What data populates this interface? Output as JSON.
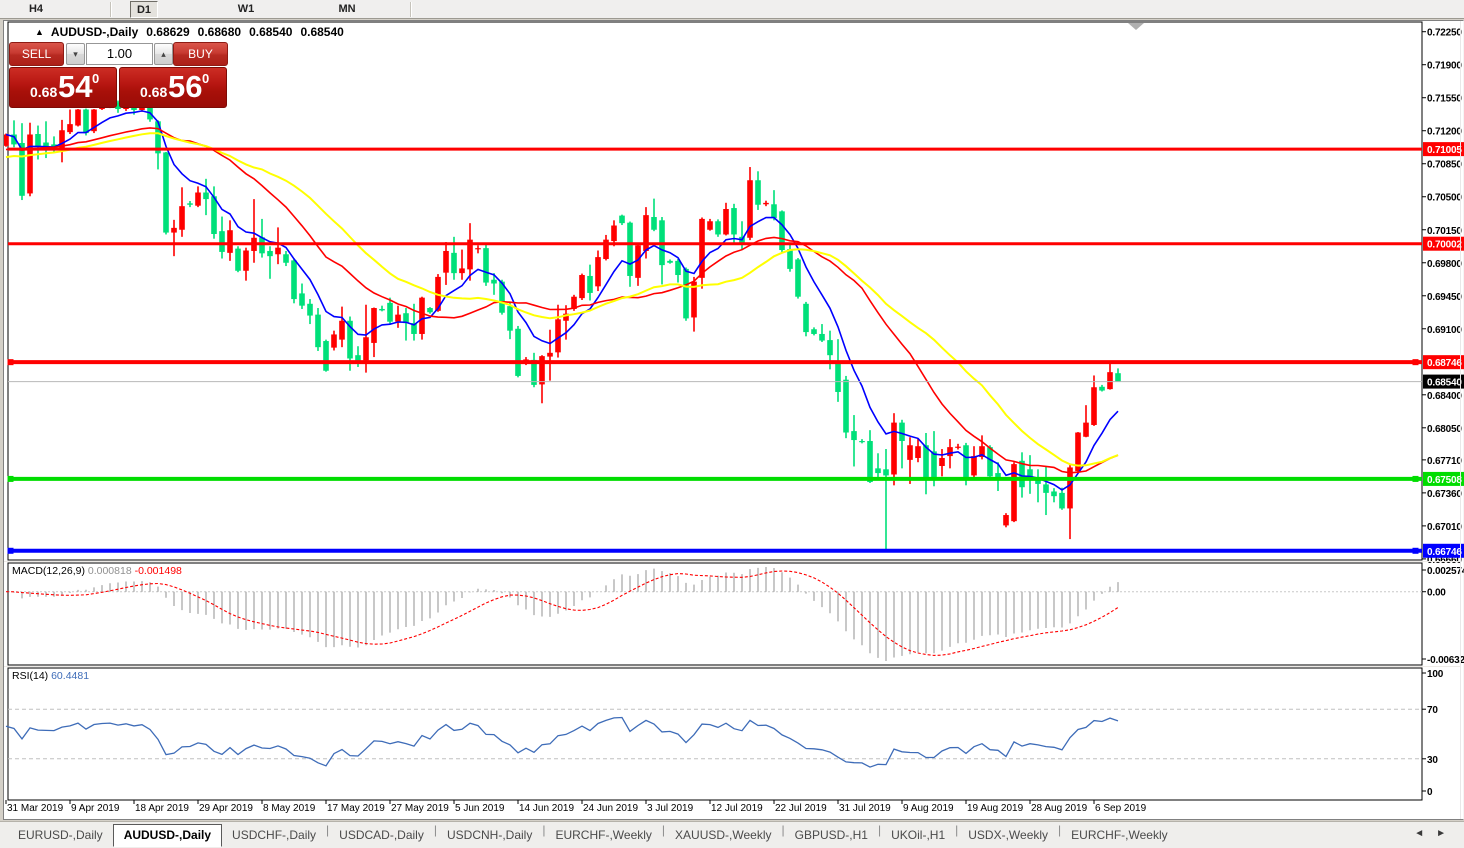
{
  "toolbar": {
    "buttons": [
      {
        "label": "H4",
        "active": false
      },
      {
        "label": "D1",
        "active": true
      },
      {
        "label": "W1",
        "active": false
      },
      {
        "label": "MN",
        "active": false
      }
    ]
  },
  "chart_window": {
    "collapse_marker": "▲",
    "title": "AUDUSD-,Daily",
    "quote_open": "0.68629",
    "quote_high": "0.68680",
    "quote_low": "0.68540",
    "quote_close": "0.68540"
  },
  "trade_panel": {
    "sell_label": "SELL",
    "buy_label": "BUY",
    "volume": "1.00",
    "spin_down_icon": "▾",
    "spin_up_icon": "▴",
    "sell_price": {
      "small": "0.68",
      "big": "54",
      "sup": "0"
    },
    "buy_price": {
      "small": "0.68",
      "big": "56",
      "sup": "0"
    }
  },
  "chart_data": {
    "type": "candlestick",
    "symbol": "AUDUSD-",
    "timeframe": "Daily",
    "bars": 140,
    "ohlc": [
      [
        0.7104,
        0.7117,
        0.7103,
        0.7116
      ],
      [
        0.7116,
        0.7131,
        0.71025,
        0.71055
      ],
      [
        0.7107,
        0.7128,
        0.70465,
        0.7051
      ],
      [
        0.70535,
        0.71285,
        0.70505,
        0.7116
      ],
      [
        0.71165,
        0.71255,
        0.70895,
        0.71035
      ],
      [
        0.71075,
        0.713,
        0.7091,
        0.7102
      ],
      [
        0.71055,
        0.7114,
        0.70975,
        0.7101
      ],
      [
        0.71,
        0.71315,
        0.70865,
        0.71205
      ],
      [
        0.71185,
        0.71425,
        0.71165,
        0.7127
      ],
      [
        0.71255,
        0.7143,
        0.71245,
        0.71425
      ],
      [
        0.71425,
        0.71435,
        0.7115,
        0.71175
      ],
      [
        0.71195,
        0.7143,
        0.71175,
        0.71425
      ],
      [
        0.7143,
        0.7152,
        0.7142,
        0.7148
      ],
      [
        0.7148,
        0.7155,
        0.7144,
        0.715
      ],
      [
        0.715,
        0.7152,
        0.7139,
        0.7143
      ],
      [
        0.7143,
        0.7153,
        0.7141,
        0.7149
      ],
      [
        0.7149,
        0.7152,
        0.7137,
        0.7142
      ],
      [
        0.7142,
        0.7154,
        0.714,
        0.7147
      ],
      [
        0.7146,
        0.7148,
        0.71295,
        0.7132
      ],
      [
        0.713,
        0.7131,
        0.7079,
        0.7096
      ],
      [
        0.7097,
        0.70975,
        0.701,
        0.7012
      ],
      [
        0.7012,
        0.70255,
        0.6987,
        0.7017
      ],
      [
        0.7015,
        0.706,
        0.70075,
        0.704
      ],
      [
        0.7043,
        0.70455,
        0.7039,
        0.70415
      ],
      [
        0.70405,
        0.7061,
        0.7039,
        0.70545
      ],
      [
        0.70545,
        0.7069,
        0.70305,
        0.70475
      ],
      [
        0.70505,
        0.7061,
        0.70055,
        0.70105
      ],
      [
        0.70135,
        0.7029,
        0.69845,
        0.69915
      ],
      [
        0.69905,
        0.7025,
        0.6982,
        0.70145
      ],
      [
        0.6995,
        0.69975,
        0.697,
        0.69715
      ],
      [
        0.69715,
        0.6996,
        0.6961,
        0.6993
      ],
      [
        0.69925,
        0.70475,
        0.698,
        0.70065
      ],
      [
        0.7007,
        0.70265,
        0.69855,
        0.699
      ],
      [
        0.69925,
        0.69975,
        0.6963,
        0.6987
      ],
      [
        0.6989,
        0.70175,
        0.69785,
        0.6996
      ],
      [
        0.6989,
        0.69925,
        0.69765,
        0.698
      ],
      [
        0.69825,
        0.69845,
        0.6937,
        0.69415
      ],
      [
        0.69475,
        0.6958,
        0.6931,
        0.69345
      ],
      [
        0.69365,
        0.69415,
        0.6915,
        0.6924
      ],
      [
        0.6925,
        0.6932,
        0.68865,
        0.68905
      ],
      [
        0.6897,
        0.68985,
        0.68645,
        0.68655
      ],
      [
        0.689,
        0.6908,
        0.6887,
        0.6904
      ],
      [
        0.68985,
        0.69335,
        0.68905,
        0.69185
      ],
      [
        0.69185,
        0.6923,
        0.68655,
        0.68785
      ],
      [
        0.6882,
        0.68915,
        0.68695,
        0.68755
      ],
      [
        0.68765,
        0.69355,
        0.68635,
        0.6901
      ],
      [
        0.6895,
        0.69325,
        0.688,
        0.6932
      ],
      [
        0.6931,
        0.69345,
        0.69285,
        0.69295
      ],
      [
        0.69375,
        0.6943,
        0.6915,
        0.69175
      ],
      [
        0.69175,
        0.69345,
        0.6911,
        0.6925
      ],
      [
        0.69265,
        0.6932,
        0.68975,
        0.6916
      ],
      [
        0.6916,
        0.69365,
        0.68975,
        0.69045
      ],
      [
        0.69045,
        0.6944,
        0.68985,
        0.6943
      ],
      [
        0.6932,
        0.6933,
        0.6926,
        0.69275
      ],
      [
        0.6929,
        0.6968,
        0.6928,
        0.6965
      ],
      [
        0.69695,
        0.7002,
        0.69565,
        0.69925
      ],
      [
        0.69905,
        0.70075,
        0.6962,
        0.6969
      ],
      [
        0.6969,
        0.6994,
        0.6962,
        0.6974
      ],
      [
        0.6973,
        0.7022,
        0.6961,
        0.70045
      ],
      [
        0.69945,
        0.69985,
        0.699,
        0.69955
      ],
      [
        0.69955,
        0.6999,
        0.69555,
        0.6959
      ],
      [
        0.6962,
        0.6969,
        0.6946,
        0.6958
      ],
      [
        0.696,
        0.6962,
        0.6925,
        0.6927
      ],
      [
        0.6934,
        0.69385,
        0.6899,
        0.6908
      ],
      [
        0.691,
        0.6913,
        0.68585,
        0.686
      ],
      [
        0.68755,
        0.688,
        0.68715,
        0.68775
      ],
      [
        0.6877,
        0.68845,
        0.6848,
        0.68505
      ],
      [
        0.6851,
        0.6882,
        0.6831,
        0.6881
      ],
      [
        0.68805,
        0.6909,
        0.6855,
        0.68845
      ],
      [
        0.6885,
        0.69355,
        0.68795,
        0.692
      ],
      [
        0.69185,
        0.6935,
        0.68985,
        0.6926
      ],
      [
        0.6931,
        0.6946,
        0.6929,
        0.6944
      ],
      [
        0.69425,
        0.69685,
        0.69405,
        0.6967
      ],
      [
        0.6966,
        0.6978,
        0.694,
        0.6948
      ],
      [
        0.6955,
        0.6993,
        0.695,
        0.6986
      ],
      [
        0.6984,
        0.70095,
        0.69825,
        0.70045
      ],
      [
        0.7003,
        0.7025,
        0.69975,
        0.70195
      ],
      [
        0.703,
        0.7031,
        0.702,
        0.7022
      ],
      [
        0.70225,
        0.70237,
        0.69545,
        0.6966
      ],
      [
        0.6964,
        0.70005,
        0.69555,
        0.69985
      ],
      [
        0.69925,
        0.7039,
        0.69845,
        0.70305
      ],
      [
        0.70285,
        0.7048,
        0.70135,
        0.7015
      ],
      [
        0.7025,
        0.70285,
        0.6957,
        0.69775
      ],
      [
        0.6982,
        0.69835,
        0.6979,
        0.698
      ],
      [
        0.6982,
        0.6984,
        0.6959,
        0.6967
      ],
      [
        0.69735,
        0.6975,
        0.69185,
        0.6921
      ],
      [
        0.6922,
        0.6965,
        0.6907,
        0.696
      ],
      [
        0.6964,
        0.7028,
        0.69525,
        0.70265
      ],
      [
        0.7015,
        0.70265,
        0.7014,
        0.7024
      ],
      [
        0.7024,
        0.7026,
        0.70075,
        0.701
      ],
      [
        0.701,
        0.70436,
        0.7009,
        0.7037
      ],
      [
        0.7038,
        0.70425,
        0.6999,
        0.701
      ],
      [
        0.70075,
        0.7024,
        0.69935,
        0.7
      ],
      [
        0.70065,
        0.70815,
        0.7004,
        0.70675
      ],
      [
        0.70675,
        0.7077,
        0.7036,
        0.70415
      ],
      [
        0.7042,
        0.70458,
        0.704,
        0.70435
      ],
      [
        0.7042,
        0.7057,
        0.7025,
        0.70275
      ],
      [
        0.70345,
        0.70355,
        0.6991,
        0.69935
      ],
      [
        0.69945,
        0.7,
        0.69705,
        0.69735
      ],
      [
        0.69835,
        0.6985,
        0.6942,
        0.6944
      ],
      [
        0.69365,
        0.69385,
        0.6902,
        0.69065
      ],
      [
        0.69095,
        0.69115,
        0.6903,
        0.69045
      ],
      [
        0.69045,
        0.6915,
        0.6896,
        0.68975
      ],
      [
        0.6898,
        0.6908,
        0.6867,
        0.6882
      ],
      [
        0.6873,
        0.6899,
        0.68325,
        0.6843
      ],
      [
        0.6856,
        0.686,
        0.6794,
        0.68
      ],
      [
        0.68015,
        0.68185,
        0.6764,
        0.6792
      ],
      [
        0.6791,
        0.6793,
        0.67885,
        0.67905
      ],
      [
        0.6791,
        0.68025,
        0.67465,
        0.67475
      ],
      [
        0.6762,
        0.6778,
        0.67515,
        0.6757
      ],
      [
        0.6761,
        0.67825,
        0.6676,
        0.67545
      ],
      [
        0.67555,
        0.68205,
        0.6744,
        0.68105
      ],
      [
        0.68105,
        0.68135,
        0.6762,
        0.6791
      ],
      [
        0.6771,
        0.6795,
        0.67455,
        0.67865
      ],
      [
        0.6773,
        0.6794,
        0.67685,
        0.67855
      ],
      [
        0.67865,
        0.67995,
        0.67345,
        0.67515
      ],
      [
        0.678,
        0.68015,
        0.6743,
        0.67515
      ],
      [
        0.67645,
        0.67825,
        0.67535,
        0.6773
      ],
      [
        0.6775,
        0.6793,
        0.6762,
        0.67845
      ],
      [
        0.67845,
        0.6788,
        0.6782,
        0.6785
      ],
      [
        0.67865,
        0.6789,
        0.6744,
        0.67525
      ],
      [
        0.67545,
        0.67855,
        0.6751,
        0.6775
      ],
      [
        0.6774,
        0.6797,
        0.67715,
        0.67855
      ],
      [
        0.67845,
        0.67865,
        0.67515,
        0.67535
      ],
      [
        0.6757,
        0.67685,
        0.6738,
        0.67505
      ],
      [
        0.67015,
        0.67145,
        0.66995,
        0.67125
      ],
      [
        0.6706,
        0.67685,
        0.6705,
        0.67665
      ],
      [
        0.677,
        0.6779,
        0.6731,
        0.6742
      ],
      [
        0.6761,
        0.6776,
        0.6735,
        0.6752
      ],
      [
        0.67505,
        0.6761,
        0.6726,
        0.67455
      ],
      [
        0.6745,
        0.67635,
        0.67125,
        0.6736
      ],
      [
        0.67375,
        0.6741,
        0.6726,
        0.67325
      ],
      [
        0.6736,
        0.67415,
        0.6718,
        0.67195
      ],
      [
        0.67195,
        0.67655,
        0.6687,
        0.6763
      ],
      [
        0.6759,
        0.68005,
        0.6757,
        0.68
      ],
      [
        0.67955,
        0.6829,
        0.6795,
        0.68105
      ],
      [
        0.6808,
        0.68605,
        0.6807,
        0.6848
      ],
      [
        0.68485,
        0.68505,
        0.68435,
        0.68445
      ],
      [
        0.6846,
        0.6874,
        0.68455,
        0.6864
      ],
      [
        0.68629,
        0.6868,
        0.6854,
        0.6854
      ]
    ],
    "colors": {
      "bull": "#FF0000",
      "bear": "#00E07A",
      "ma_fast": "#0000FF",
      "ma_mid": "#FF0000",
      "ma_slow": "#FFFF00",
      "macd_hist": "#909090",
      "macd_signal": "#FF0000",
      "rsi_line": "#3E6CB8",
      "bid_line": "#B8B8B8"
    },
    "moving_averages": [
      {
        "period": 8,
        "method": "ema",
        "color": "#0000FF"
      },
      {
        "period": 21,
        "method": "sma",
        "color": "#FF0000"
      },
      {
        "period": 30,
        "method": "sma",
        "color": "#FFFF00"
      }
    ],
    "price_axis": {
      "ticks": [
        "0.72250",
        "0.71900",
        "0.71550",
        "0.71200",
        "0.70850",
        "0.70500",
        "0.70150",
        "0.69800",
        "0.69450",
        "0.69100",
        "0.68400",
        "0.68050",
        "0.67710",
        "0.67360",
        "0.67010",
        "0.66660"
      ],
      "tick_values": [
        0.7225,
        0.719,
        0.7155,
        0.712,
        0.7085,
        0.705,
        0.7015,
        0.698,
        0.6945,
        0.691,
        0.684,
        0.6805,
        0.6771,
        0.6736,
        0.6701,
        0.6666
      ],
      "bid_price": 0.6854,
      "bid_label": "0.68540"
    },
    "hlines": [
      {
        "price": 0.71005,
        "label": "0.71005",
        "color": "#FF0000",
        "width": 3,
        "selected": false
      },
      {
        "price": 0.70002,
        "label": "0.70002",
        "color": "#FF0000",
        "width": 3,
        "selected": false
      },
      {
        "price": 0.68746,
        "label": "0.68746",
        "color": "#FF0000",
        "width": 4,
        "selected": true
      },
      {
        "price": 0.67508,
        "label": "0.67508",
        "color": "#00DD00",
        "width": 4,
        "selected": true
      },
      {
        "price": 0.66746,
        "label": "0.66746",
        "color": "#0000FF",
        "width": 4,
        "selected": true
      }
    ],
    "date_labels": [
      {
        "text": "31 Mar 2019",
        "bar": 0
      },
      {
        "text": "9 Apr 2019",
        "bar": 8
      },
      {
        "text": "18 Apr 2019",
        "bar": 16
      },
      {
        "text": "29 Apr 2019",
        "bar": 24
      },
      {
        "text": "8 May 2019",
        "bar": 32
      },
      {
        "text": "17 May 2019",
        "bar": 40
      },
      {
        "text": "27 May 2019",
        "bar": 48
      },
      {
        "text": "5 Jun 2019",
        "bar": 56
      },
      {
        "text": "14 Jun 2019",
        "bar": 64
      },
      {
        "text": "24 Jun 2019",
        "bar": 72
      },
      {
        "text": "3 Jul 2019",
        "bar": 80
      },
      {
        "text": "12 Jul 2019",
        "bar": 88
      },
      {
        "text": "22 Jul 2019",
        "bar": 96
      },
      {
        "text": "31 Jul 2019",
        "bar": 104
      },
      {
        "text": "9 Aug 2019",
        "bar": 112
      },
      {
        "text": "19 Aug 2019",
        "bar": 120
      },
      {
        "text": "28 Aug 2019",
        "bar": 128
      },
      {
        "text": "6 Sep 2019",
        "bar": 136
      }
    ],
    "macd": {
      "label": "MACD(12,26,9)",
      "value": "0.000818",
      "signal_value": "-0.001498",
      "fast": 12,
      "slow": 26,
      "signal": 9,
      "axis_max": "0.002574",
      "axis_zero": "0.00",
      "axis_min": "-0.006326"
    },
    "rsi": {
      "label": "RSI(14)",
      "value": "60.4481",
      "period": 14,
      "levels": [
        70,
        30
      ],
      "axis": [
        "100",
        "70",
        "30",
        "0"
      ]
    }
  },
  "tab_bar": {
    "tabs": [
      {
        "label": "EURUSD-,Daily",
        "active": false
      },
      {
        "label": "AUDUSD-,Daily",
        "active": true
      },
      {
        "label": "USDCHF-,Daily",
        "active": false
      },
      {
        "label": "USDCAD-,Daily",
        "active": false
      },
      {
        "label": "USDCNH-,Daily",
        "active": false
      },
      {
        "label": "EURCHF-,Weekly",
        "active": false
      },
      {
        "label": "XAUUSD-,Weekly",
        "active": false
      },
      {
        "label": "GBPUSD-,H1",
        "active": false
      },
      {
        "label": "UKOil-,H1",
        "active": false
      },
      {
        "label": "USDX-,Weekly",
        "active": false
      },
      {
        "label": "EURCHF-,Weekly",
        "active": false
      }
    ],
    "scroll_left_icon": "◄",
    "scroll_right_icon": "►"
  }
}
